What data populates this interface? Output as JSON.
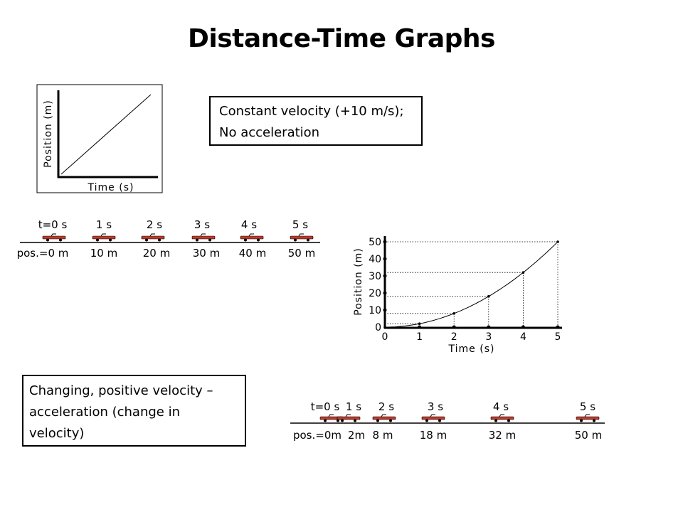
{
  "slide": {
    "title": "Distance-Time Graphs"
  },
  "graph1": {
    "ylabel": "Position (m)",
    "xlabel": "Time (s)"
  },
  "caption1": {
    "line1": "Constant velocity (+10 m/s);",
    "line2": "No acceleration"
  },
  "caption2": {
    "line1": "Changing, positive velocity –",
    "line2": "acceleration (change in",
    "line3": "velocity)"
  },
  "strip1": {
    "times": [
      "t=0 s",
      "1 s",
      "2 s",
      "3 s",
      "4 s",
      "5 s"
    ],
    "positions": [
      "pos.=0 m",
      "10 m",
      "20 m",
      "30 m",
      "40 m",
      "50 m"
    ]
  },
  "strip2": {
    "times": [
      "t=0 s",
      "1 s",
      "2 s",
      "3 s",
      "4 s",
      "5 s"
    ],
    "positions": [
      "pos.=0m",
      "2m",
      "8 m",
      "18 m",
      "32 m",
      "50 m"
    ]
  },
  "colors": {
    "car": "#c0392b",
    "line": "#000000"
  },
  "chart_data": [
    {
      "type": "line",
      "series": [
        {
          "x": [
            0,
            1
          ],
          "y": [
            0,
            1
          ]
        }
      ],
      "xlabel": "Time (s)",
      "ylabel": "Position (m)",
      "grid": false
    },
    {
      "type": "line",
      "x": [
        0,
        1,
        2,
        3,
        4,
        5
      ],
      "y": [
        0,
        2,
        8,
        18,
        32,
        50
      ],
      "xticks": [
        "0",
        "1",
        "2",
        "3",
        "4",
        "5"
      ],
      "yticks": [
        "0",
        "10",
        "20",
        "30",
        "40",
        "50"
      ],
      "xlim": [
        0,
        5
      ],
      "ylim": [
        0,
        50
      ],
      "xlabel": "Time (s)",
      "ylabel": "Position (m)",
      "grid": false,
      "dotted_guides": true
    }
  ]
}
